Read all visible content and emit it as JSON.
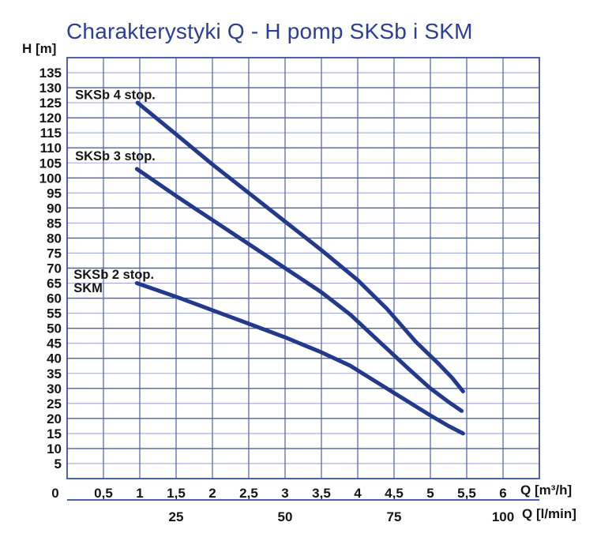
{
  "chart_data": {
    "type": "line",
    "title": "Charakterystyki Q - H pomp SKSb i SKM",
    "ylabel": "H [m]",
    "xlabel": "Q [m³/h]",
    "xlabel2": "Q [l/min]",
    "xlim": [
      0,
      6.5
    ],
    "ylim": [
      0,
      140
    ],
    "grid": true,
    "legend_position": "inline-curve-labels",
    "y_tick_step": 5,
    "y_ticks": [
      135,
      130,
      125,
      120,
      115,
      110,
      105,
      100,
      95,
      90,
      85,
      80,
      75,
      70,
      65,
      60,
      55,
      50,
      45,
      40,
      35,
      30,
      25,
      20,
      15,
      10,
      5
    ],
    "x_ticks": [
      {
        "q": 0,
        "label": "0",
        "dx": -15
      },
      {
        "q": 0.5,
        "label": "0,5"
      },
      {
        "q": 1,
        "label": "1"
      },
      {
        "q": 1.5,
        "label": "1,5"
      },
      {
        "q": 2,
        "label": "2"
      },
      {
        "q": 2.5,
        "label": "2,5"
      },
      {
        "q": 3,
        "label": "3"
      },
      {
        "q": 3.5,
        "label": "3,5"
      },
      {
        "q": 4,
        "label": "4"
      },
      {
        "q": 4.5,
        "label": "4,5"
      },
      {
        "q": 5,
        "label": "5"
      },
      {
        "q": 5.5,
        "label": "5,5"
      },
      {
        "q": 6,
        "label": "6"
      }
    ],
    "x2_ticks": [
      {
        "q": 1.5,
        "label": "25"
      },
      {
        "q": 3,
        "label": "50"
      },
      {
        "q": 4.5,
        "label": "75"
      },
      {
        "q": 6,
        "label": "100"
      }
    ],
    "series": [
      {
        "name": "SKSb 4 stop.",
        "label_lines": [
          "SKSb 4 stop."
        ],
        "label_q": 0.11,
        "label_h": 126.2,
        "points": [
          [
            0.97,
            125
          ],
          [
            1.5,
            114.5
          ],
          [
            2,
            104.5
          ],
          [
            2.5,
            95
          ],
          [
            3,
            85.5
          ],
          [
            3.5,
            76
          ],
          [
            4,
            66
          ],
          [
            4.4,
            56.5
          ],
          [
            4.8,
            45.5
          ],
          [
            5.1,
            38.5
          ],
          [
            5.3,
            33.5
          ],
          [
            5.45,
            29
          ]
        ]
      },
      {
        "name": "SKSb 3 stop.",
        "label_lines": [
          "SKSb 3 stop."
        ],
        "label_q": 0.11,
        "label_h": 105.8,
        "points": [
          [
            0.96,
            103
          ],
          [
            1.5,
            94
          ],
          [
            2,
            86
          ],
          [
            2.5,
            78
          ],
          [
            3,
            70
          ],
          [
            3.5,
            62
          ],
          [
            3.9,
            54.5
          ],
          [
            4.3,
            45.5
          ],
          [
            4.7,
            36.5
          ],
          [
            5,
            30
          ],
          [
            5.25,
            25.5
          ],
          [
            5.43,
            22.5
          ]
        ]
      },
      {
        "name": "SKSb 2 stop. / SKM",
        "label_lines": [
          "SKSb 2 stop.",
          "SKM"
        ],
        "label_q": 0.09,
        "label_h": 66.4,
        "points": [
          [
            0.96,
            65
          ],
          [
            1.5,
            60.5
          ],
          [
            2,
            56
          ],
          [
            2.5,
            51.5
          ],
          [
            3,
            47
          ],
          [
            3.5,
            42
          ],
          [
            3.9,
            37.5
          ],
          [
            4.3,
            31.5
          ],
          [
            4.7,
            25.5
          ],
          [
            5,
            21
          ],
          [
            5.25,
            17.5
          ],
          [
            5.45,
            15
          ]
        ]
      }
    ],
    "colors": {
      "title": "#2c3e96",
      "curve": "#23398b",
      "grid_dark": "#4f5fa8",
      "grid_light": "#9fabd8",
      "border": "#3f50a0",
      "axis2_line": "#4f5fa8",
      "text": "#151515",
      "background": "#ffffff"
    }
  }
}
